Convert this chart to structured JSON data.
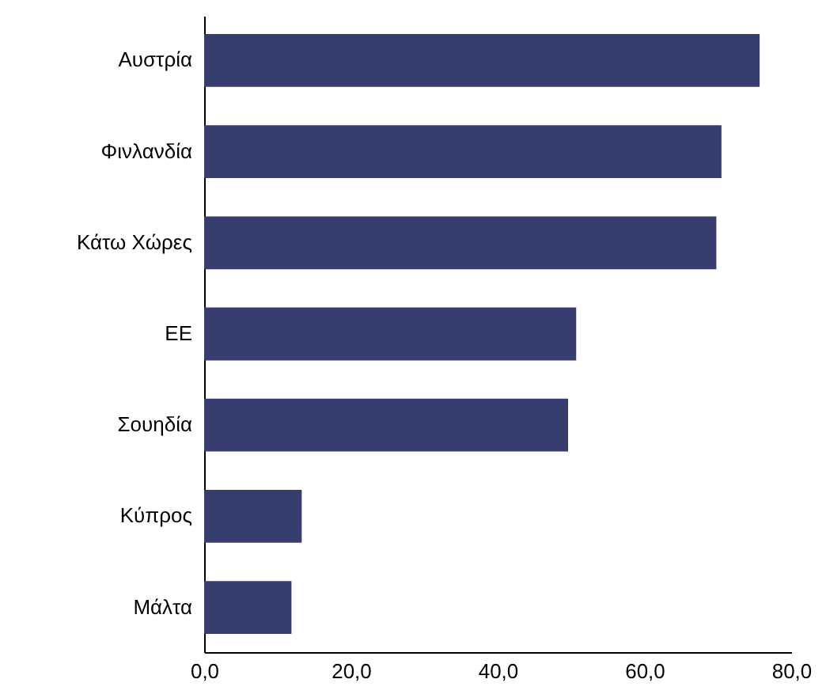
{
  "chart_data": {
    "type": "bar",
    "orientation": "horizontal",
    "categories": [
      "Αυστρία",
      "Φινλανδία",
      "Κάτω Χώρες",
      "ΕΕ",
      "Σουηδία",
      "Κύπρος",
      "Μάλτα"
    ],
    "values": [
      75.7,
      70.5,
      69.8,
      50.7,
      49.6,
      13.3,
      11.9
    ],
    "color": "#373d6e",
    "xlim": [
      0,
      80
    ],
    "xticks": [
      {
        "value": 0,
        "label": "0,0"
      },
      {
        "value": 20,
        "label": "20,0"
      },
      {
        "value": 40,
        "label": "40,0"
      },
      {
        "value": 60,
        "label": "60,0"
      },
      {
        "value": 80,
        "label": "80,0"
      }
    ],
    "grid": false
  }
}
